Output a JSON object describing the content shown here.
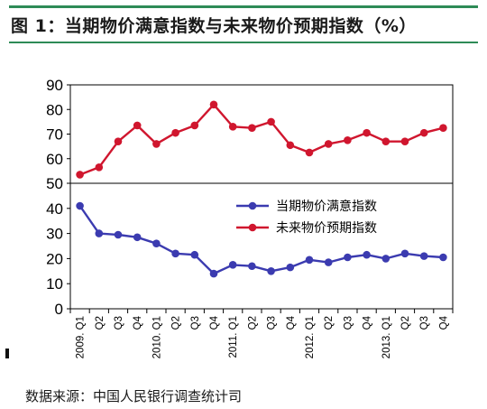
{
  "header": {
    "title": "图 1：当期物价满意指数与未来物价预期指数（%）"
  },
  "footer": {
    "source": "数据来源：中国人民银行调查统计司"
  },
  "chart_data": {
    "type": "line",
    "title": "",
    "xlabel": "",
    "ylabel": "",
    "categories": [
      "2009. Q1",
      "Q2",
      "Q3",
      "Q4",
      "2010. Q1",
      "Q2",
      "Q3",
      "Q4",
      "2011. Q1",
      "Q2",
      "Q3",
      "Q4",
      "2012. Q1",
      "Q2",
      "Q3",
      "Q4",
      "2013. Q1",
      "Q2",
      "Q3",
      "Q4"
    ],
    "y_ticks_top": [
      50,
      60,
      70,
      80,
      90
    ],
    "y_ticks_bottom": [
      0,
      10,
      20,
      30,
      40
    ],
    "ylim_top": [
      50,
      90
    ],
    "ylim_bottom": [
      0,
      50
    ],
    "grid": false,
    "legend_position": "right",
    "series": [
      {
        "name": "当期物价满意指数",
        "color": "#3b3bb0",
        "panel": "bottom",
        "values": [
          41,
          30,
          29.5,
          28.5,
          26,
          22,
          21.5,
          14,
          17.5,
          17,
          15,
          16.5,
          19.5,
          18.5,
          20.5,
          21.5,
          20,
          22,
          21,
          20.5
        ]
      },
      {
        "name": "未来物价预期指数",
        "color": "#d0162e",
        "panel": "top",
        "values": [
          53.5,
          56.5,
          67,
          73.5,
          66,
          70.5,
          73.5,
          82,
          73,
          72.5,
          75,
          65.5,
          62.5,
          66,
          67.5,
          70.5,
          67,
          67,
          70.5,
          72.5
        ]
      }
    ]
  }
}
